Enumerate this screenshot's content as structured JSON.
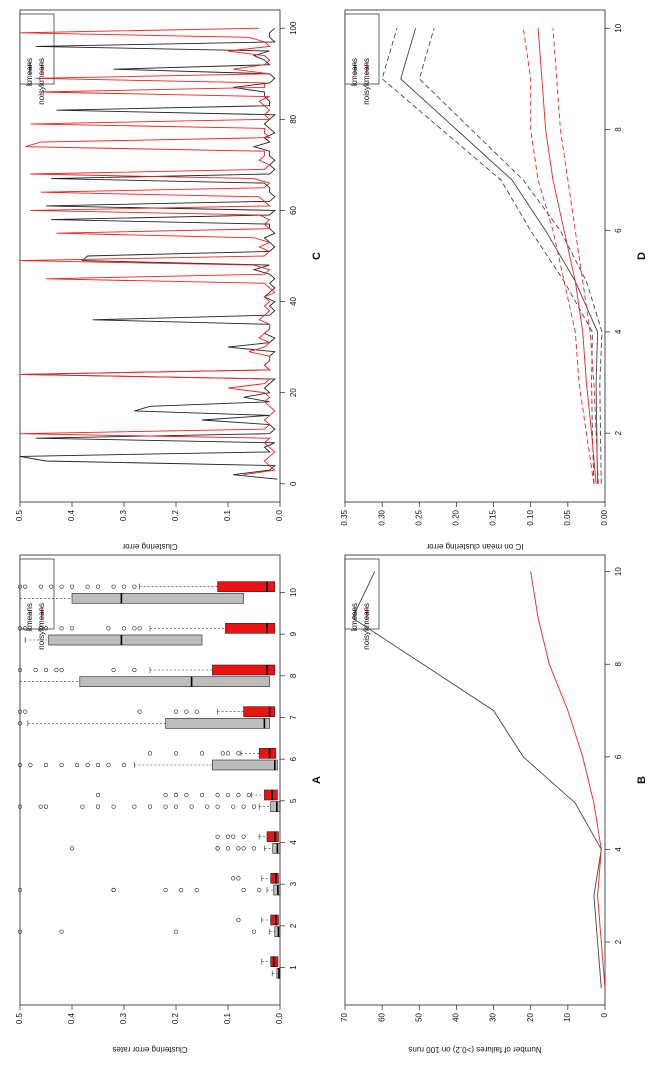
{
  "chart_data": [
    {
      "id": "A",
      "panel_label": "A",
      "type": "box",
      "ylabel": "Clustering error rates",
      "xlabel": "",
      "ylim": [
        0,
        0.5
      ],
      "y_ticks": [
        "0.0",
        "0.1",
        "0.2",
        "0.3",
        "0.4",
        "0.5"
      ],
      "y_tick_values": [
        0,
        0.1,
        0.2,
        0.3,
        0.4,
        0.5
      ],
      "categories": [
        "1",
        "2",
        "3",
        "4",
        "5",
        "6",
        "7",
        "8",
        "9",
        "10"
      ],
      "legend": [
        {
          "name": "kmeans",
          "color": "#c0c0c0"
        },
        {
          "name": "noisykmeans",
          "color": "#ee1111"
        }
      ],
      "series": [
        {
          "name": "kmeans",
          "color": "#bbbbbb",
          "boxes": [
            {
              "q1": 0.0,
              "med": 0.002,
              "q3": 0.006,
              "wlo": 0,
              "whi": 0.015,
              "out": []
            },
            {
              "q1": 0.0,
              "med": 0.003,
              "q3": 0.01,
              "wlo": 0,
              "whi": 0.02,
              "out": [
                0.05,
                0.2,
                0.42,
                0.5
              ]
            },
            {
              "q1": 0.0,
              "med": 0.004,
              "q3": 0.012,
              "wlo": 0,
              "whi": 0.025,
              "out": [
                0.04,
                0.07,
                0.16,
                0.19,
                0.22,
                0.32,
                0.32,
                0.5
              ]
            },
            {
              "q1": 0.0,
              "med": 0.005,
              "q3": 0.014,
              "wlo": 0,
              "whi": 0.03,
              "out": [
                0.05,
                0.07,
                0.08,
                0.1,
                0.12,
                0.12,
                0.4
              ]
            },
            {
              "q1": 0.0,
              "med": 0.006,
              "q3": 0.018,
              "wlo": 0,
              "whi": 0.04,
              "out": [
                0.05,
                0.07,
                0.09,
                0.12,
                0.14,
                0.17,
                0.2,
                0.22,
                0.25,
                0.28,
                0.32,
                0.35,
                0.38,
                0.45,
                0.46,
                0.5
              ]
            },
            {
              "q1": 0.005,
              "med": 0.01,
              "q3": 0.13,
              "wlo": 0,
              "whi": 0.28,
              "out": [
                0.3,
                0.33,
                0.35,
                0.37,
                0.39,
                0.42,
                0.45,
                0.48,
                0.5
              ]
            },
            {
              "q1": 0.02,
              "med": 0.03,
              "q3": 0.22,
              "wlo": 0,
              "whi": 0.485,
              "out": [
                0.5
              ]
            },
            {
              "q1": 0.02,
              "med": 0.17,
              "q3": 0.385,
              "wlo": 0,
              "whi": 0.5,
              "out": []
            },
            {
              "q1": 0.15,
              "med": 0.305,
              "q3": 0.445,
              "wlo": 0,
              "whi": 0.49,
              "out": []
            },
            {
              "q1": 0.07,
              "med": 0.305,
              "q3": 0.4,
              "wlo": 0,
              "whi": 0.5,
              "out": []
            }
          ]
        },
        {
          "name": "noisykmeans",
          "color": "#ee0000",
          "boxes": [
            {
              "q1": 0.004,
              "med": 0.012,
              "q3": 0.018,
              "wlo": 0,
              "whi": 0.035,
              "out": []
            },
            {
              "q1": 0.003,
              "med": 0.008,
              "q3": 0.018,
              "wlo": 0,
              "whi": 0.035,
              "out": [
                0.08
              ]
            },
            {
              "q1": 0.003,
              "med": 0.008,
              "q3": 0.018,
              "wlo": 0,
              "whi": 0.035,
              "out": [
                0.08,
                0.09
              ]
            },
            {
              "q1": 0.003,
              "med": 0.01,
              "q3": 0.025,
              "wlo": 0,
              "whi": 0.04,
              "out": [
                0.07,
                0.09,
                0.1,
                0.12
              ]
            },
            {
              "q1": 0.005,
              "med": 0.015,
              "q3": 0.03,
              "wlo": 0,
              "whi": 0.055,
              "out": [
                0.06,
                0.08,
                0.1,
                0.12,
                0.15,
                0.18,
                0.2,
                0.22,
                0.35
              ]
            },
            {
              "q1": 0.008,
              "med": 0.02,
              "q3": 0.04,
              "wlo": 0,
              "whi": 0.075,
              "out": [
                0.08,
                0.1,
                0.11,
                0.15,
                0.2,
                0.25
              ]
            },
            {
              "q1": 0.01,
              "med": 0.02,
              "q3": 0.07,
              "wlo": 0,
              "whi": 0.12,
              "out": [
                0.16,
                0.18,
                0.2,
                0.27,
                0.49,
                0.5
              ]
            },
            {
              "q1": 0.01,
              "med": 0.025,
              "q3": 0.13,
              "wlo": 0,
              "whi": 0.25,
              "out": [
                0.28,
                0.32,
                0.42,
                0.43,
                0.45,
                0.47,
                0.5
              ]
            },
            {
              "q1": 0.01,
              "med": 0.025,
              "q3": 0.105,
              "wlo": 0,
              "whi": 0.25,
              "out": [
                0.27,
                0.28,
                0.3,
                0.33,
                0.4,
                0.42,
                0.45,
                0.46,
                0.49,
                0.5
              ]
            },
            {
              "q1": 0.01,
              "med": 0.025,
              "q3": 0.12,
              "wlo": 0,
              "whi": 0.27,
              "out": [
                0.28,
                0.3,
                0.32,
                0.35,
                0.37,
                0.4,
                0.42,
                0.44,
                0.46,
                0.49,
                0.5
              ]
            }
          ]
        }
      ]
    },
    {
      "id": "B",
      "panel_label": "B",
      "type": "line",
      "ylabel": "Number of failures (>0.2) on 100 runs",
      "xlabel": "",
      "ylim": [
        0,
        70
      ],
      "xlim": [
        1,
        10
      ],
      "y_ticks": [
        "0",
        "10",
        "20",
        "30",
        "40",
        "50",
        "60",
        "70"
      ],
      "y_tick_values": [
        0,
        10,
        20,
        30,
        40,
        50,
        60,
        70
      ],
      "x_ticks": [
        "2",
        "4",
        "6",
        "8",
        "10"
      ],
      "x_tick_values": [
        2,
        4,
        6,
        8,
        10
      ],
      "legend": [
        {
          "name": "kmeans",
          "color": "#444444"
        },
        {
          "name": "noisykmeans",
          "color": "#ee2222"
        }
      ],
      "x": [
        1,
        2,
        3,
        4,
        5,
        6,
        7,
        8,
        9,
        10
      ],
      "series": [
        {
          "name": "kmeans",
          "color": "#444444",
          "dash": "",
          "values": [
            1,
            2,
            3,
            1,
            8,
            22,
            30,
            49,
            68,
            62
          ]
        },
        {
          "name": "noisykmeans",
          "color": "#ee2222",
          "dash": "",
          "values": [
            0,
            1,
            2,
            1,
            3,
            6,
            10,
            15,
            18,
            20
          ]
        }
      ]
    },
    {
      "id": "C",
      "panel_label": "C",
      "type": "line",
      "ylabel": "Clustering error",
      "xlabel": "",
      "ylim": [
        0,
        0.5
      ],
      "xlim": [
        0,
        100
      ],
      "y_ticks": [
        "0.0",
        "0.1",
        "0.2",
        "0.3",
        "0.4",
        "0.5"
      ],
      "y_tick_values": [
        0,
        0.1,
        0.2,
        0.3,
        0.4,
        0.5
      ],
      "x_ticks": [
        "0",
        "20",
        "40",
        "60",
        "80",
        "100"
      ],
      "x_tick_values": [
        0,
        20,
        40,
        60,
        80,
        100
      ],
      "legend": [
        {
          "name": "kmeans",
          "color": "#222222"
        },
        {
          "name": "noisykmeans",
          "color": "#ee2222"
        }
      ],
      "series": [
        {
          "name": "kmeans",
          "color": "#222222",
          "dash": "",
          "x": [
            1,
            2,
            3,
            4,
            5,
            6,
            7,
            8,
            9,
            10,
            11,
            12,
            13,
            14,
            15,
            16,
            17,
            18,
            19,
            20,
            21,
            22,
            23,
            24,
            25,
            26,
            27,
            28,
            29,
            30,
            31,
            32,
            33,
            34,
            35,
            36,
            37,
            38,
            39,
            40,
            41,
            42,
            43,
            44,
            45,
            46,
            47,
            48,
            49,
            50,
            51,
            52,
            53,
            54,
            55,
            56,
            57,
            58,
            59,
            60,
            61,
            62,
            63,
            64,
            65,
            66,
            67,
            68,
            69,
            70,
            71,
            72,
            73,
            74,
            75,
            76,
            77,
            78,
            79,
            80,
            81,
            82,
            83,
            84,
            85,
            86,
            87,
            88,
            89,
            90,
            91,
            92,
            93,
            94,
            95,
            96,
            97,
            98,
            99,
            100
          ],
          "values": [
            0.005,
            0.09,
            0.02,
            0.01,
            0.45,
            0.5,
            0.02,
            0.03,
            0.01,
            0.47,
            0.02,
            0.01,
            0.02,
            0.15,
            0.02,
            0.28,
            0.25,
            0.02,
            0.07,
            0.02,
            0.03,
            0.02,
            0.01,
            0.5,
            0.02,
            0.03,
            0.02,
            0.02,
            0.01,
            0.1,
            0.02,
            0.01,
            0.03,
            0.02,
            0.02,
            0.36,
            0.02,
            0.01,
            0.02,
            0.01,
            0.03,
            0.02,
            0.01,
            0.02,
            0.01,
            0.02,
            0.05,
            0.02,
            0.38,
            0.37,
            0.02,
            0.01,
            0.02,
            0.03,
            0.01,
            0.02,
            0.02,
            0.44,
            0.02,
            0.01,
            0.45,
            0.02,
            0.01,
            0.02,
            0.02,
            0.03,
            0.44,
            0.02,
            0.01,
            0.02,
            0.01,
            0.02,
            0.02,
            0.05,
            0.02,
            0.03,
            0.01,
            0.02,
            0.03,
            0.02,
            0.01,
            0.43,
            0.02,
            0.02,
            0.03,
            0.03,
            0.09,
            0.02,
            0.01,
            0.02,
            0.32,
            0.02,
            0.03,
            0.05,
            0.02,
            0.47,
            0.01,
            0.02,
            0.02,
            0.01
          ]
        },
        {
          "name": "noisykmeans",
          "color": "#ee2222",
          "dash": "",
          "x": [
            2,
            3,
            4,
            5,
            6,
            7,
            8,
            9,
            10,
            11,
            12,
            13,
            14,
            15,
            16,
            17,
            18,
            19,
            20,
            21,
            22,
            23,
            24,
            25,
            26,
            27,
            28,
            29,
            30,
            31,
            32,
            33,
            34,
            35,
            36,
            37,
            38,
            39,
            40,
            41,
            42,
            43,
            44,
            45,
            46,
            47,
            48,
            49,
            50,
            51,
            52,
            53,
            54,
            55,
            56,
            57,
            58,
            59,
            60,
            61,
            62,
            63,
            64,
            65,
            66,
            67,
            68,
            69,
            70,
            71,
            72,
            73,
            74,
            75,
            76,
            77,
            78,
            79,
            80,
            81,
            82,
            83,
            84,
            85,
            86,
            87,
            88,
            89,
            90,
            91,
            92,
            93,
            94,
            95,
            96,
            97,
            98,
            99,
            100
          ],
          "values": [
            0.07,
            0.01,
            0.02,
            0.03,
            0.02,
            0.01,
            0.02,
            0.03,
            0.02,
            0.5,
            0.03,
            0.02,
            0.03,
            0.02,
            0.01,
            0.02,
            0.03,
            0.02,
            0.03,
            0.1,
            0.03,
            0.02,
            0.5,
            0.02,
            0.03,
            0.02,
            0.02,
            0.06,
            0.03,
            0.02,
            0.04,
            0.03,
            0.02,
            0.02,
            0.04,
            0.03,
            0.02,
            0.03,
            0.02,
            0.03,
            0.01,
            0.02,
            0.03,
            0.45,
            0.03,
            0.02,
            0.05,
            0.5,
            0.03,
            0.02,
            0.04,
            0.02,
            0.05,
            0.43,
            0.02,
            0.03,
            0.02,
            0.04,
            0.48,
            0.02,
            0.03,
            0.04,
            0.46,
            0.03,
            0.02,
            0.05,
            0.48,
            0.03,
            0.02,
            0.04,
            0.03,
            0.03,
            0.49,
            0.46,
            0.02,
            0.03,
            0.03,
            0.48,
            0.02,
            0.03,
            0.02,
            0.03,
            0.04,
            0.02,
            0.46,
            0.03,
            0.03,
            0.47,
            0.02,
            0.09,
            0.03,
            0.02,
            0.03,
            0.1,
            0.02,
            0.03,
            0.06,
            0.5,
            0.04
          ]
        }
      ]
    },
    {
      "id": "D",
      "panel_label": "D",
      "type": "line",
      "ylabel": "IC on mean clustering error",
      "xlabel": "",
      "ylim": [
        0,
        0.35
      ],
      "xlim": [
        1,
        10
      ],
      "y_ticks": [
        "0.00",
        "0.05",
        "0.10",
        "0.15",
        "0.20",
        "0.25",
        "0.30",
        "0.35"
      ],
      "y_tick_values": [
        0,
        0.05,
        0.1,
        0.15,
        0.2,
        0.25,
        0.3,
        0.35
      ],
      "x_ticks": [
        "2",
        "4",
        "6",
        "8",
        "10"
      ],
      "x_tick_values": [
        2,
        4,
        6,
        8,
        10
      ],
      "legend": [
        {
          "name": "kmeans",
          "color": "#444444"
        },
        {
          "name": "noisykmeans",
          "color": "#ee2222"
        }
      ],
      "x": [
        1,
        2,
        3,
        4,
        5,
        6,
        7,
        8,
        9,
        10
      ],
      "series": [
        {
          "name": "kmeans",
          "color": "#444444",
          "dash": "",
          "values": [
            0.01,
            0.011,
            0.012,
            0.01,
            0.04,
            0.08,
            0.125,
            0.2,
            0.275,
            0.255
          ]
        },
        {
          "name": "kmeans upper",
          "color": "#444444",
          "dash": "5,3",
          "values": [
            0.015,
            0.017,
            0.018,
            0.017,
            0.055,
            0.1,
            0.14,
            0.22,
            0.3,
            0.28
          ]
        },
        {
          "name": "kmeans lower",
          "color": "#444444",
          "dash": "5,3",
          "values": [
            0.005,
            0.006,
            0.007,
            0.004,
            0.025,
            0.06,
            0.11,
            0.18,
            0.25,
            0.23
          ]
        },
        {
          "name": "noisykmeans",
          "color": "#ee2222",
          "dash": "",
          "values": [
            0.012,
            0.018,
            0.025,
            0.03,
            0.04,
            0.055,
            0.07,
            0.08,
            0.085,
            0.09
          ]
        },
        {
          "name": "noisykmeans upper",
          "color": "#ee2222",
          "dash": "5,3",
          "values": [
            0.015,
            0.025,
            0.035,
            0.04,
            0.055,
            0.07,
            0.09,
            0.1,
            0.1,
            0.11
          ]
        },
        {
          "name": "noisykmeans lower",
          "color": "#ee2222",
          "dash": "5,3",
          "values": [
            0.009,
            0.012,
            0.015,
            0.02,
            0.03,
            0.04,
            0.05,
            0.06,
            0.065,
            0.07
          ]
        }
      ]
    }
  ]
}
